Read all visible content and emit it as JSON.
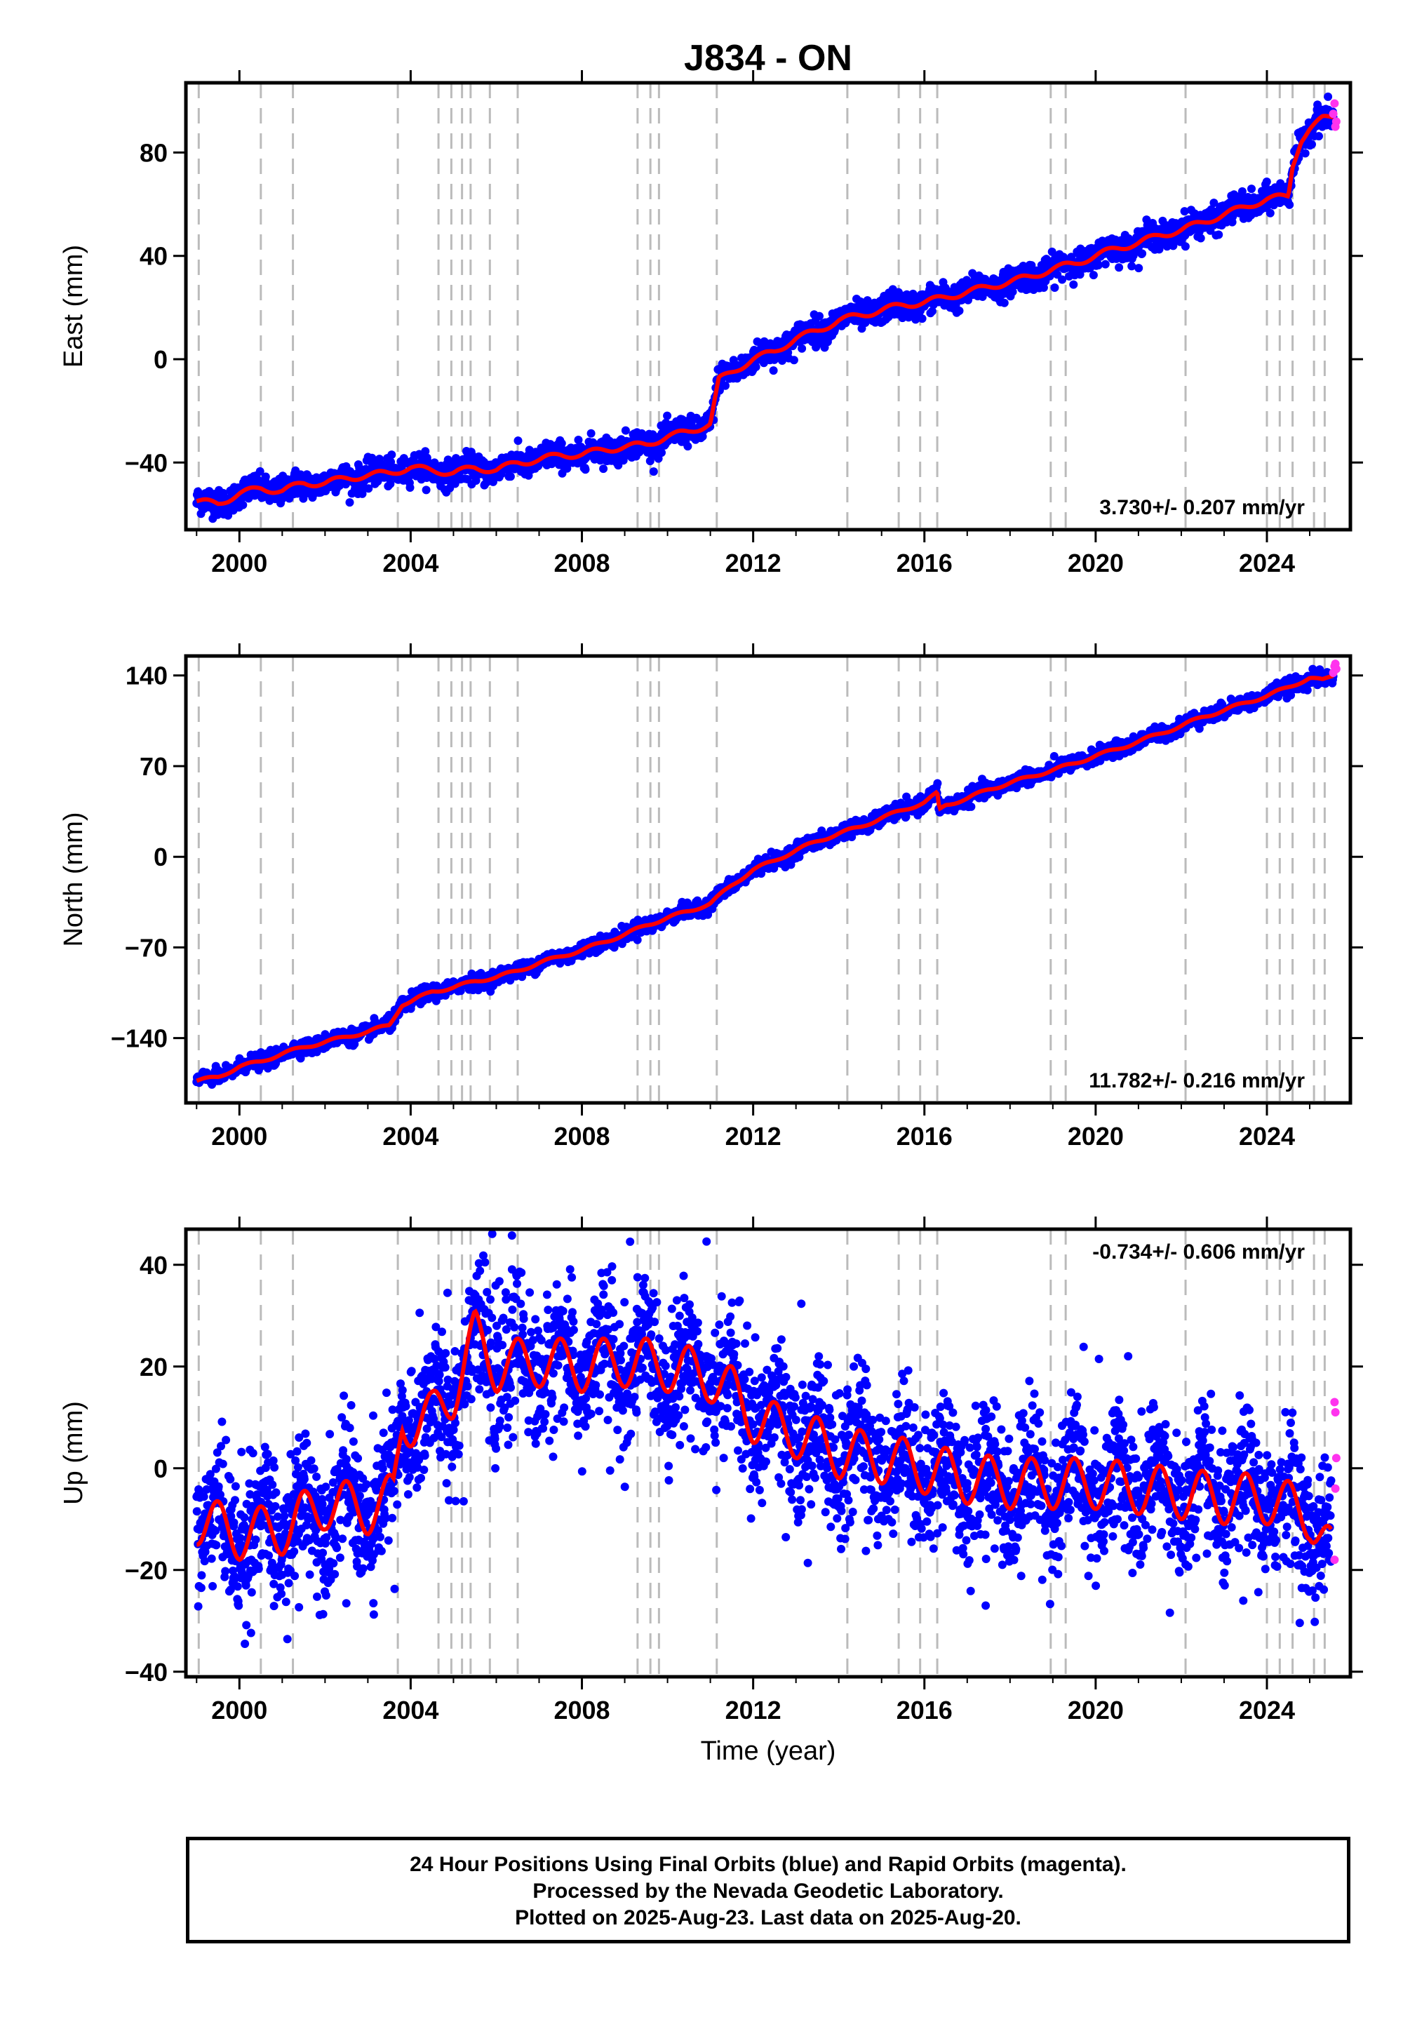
{
  "title": "J834 - ON",
  "footer": {
    "line1": "24 Hour Positions Using Final Orbits (blue) and Rapid Orbits (magenta).",
    "line2": "Processed by the Nevada Geodetic Laboratory.",
    "line3": "Plotted on 2025-Aug-23. Last data on 2025-Aug-20."
  },
  "colors": {
    "final_orbits": "#0000ff",
    "rapid_orbits": "#ff33ee",
    "model": "#ff0000",
    "event_lines": "#bbbbbb"
  },
  "chart_data": [
    {
      "type": "scatter",
      "component": "East",
      "ylabel": "East (mm)",
      "xlabel": "",
      "xlim": [
        1998.75,
        2025.95
      ],
      "ylim": [
        -66,
        107
      ],
      "xticks": [
        2000,
        2004,
        2008,
        2012,
        2016,
        2020,
        2024
      ],
      "yticks": [
        -40,
        0,
        40,
        80
      ],
      "rate_label": "3.730+/- 0.207 mm/yr",
      "series": [
        {
          "name": "Final Orbits",
          "color": "#0000ff",
          "x": [
            1999.0,
            1999.5,
            2000.0,
            2000.5,
            2001.0,
            2001.5,
            2002.0,
            2002.5,
            2003.0,
            2003.5,
            2004.0,
            2004.5,
            2005.0,
            2005.5,
            2006.0,
            2006.5,
            2007.0,
            2007.5,
            2008.0,
            2008.5,
            2009.0,
            2009.5,
            2010.0,
            2010.5,
            2011.0,
            2011.2,
            2011.5,
            2012.0,
            2012.5,
            2013.0,
            2013.5,
            2014.0,
            2014.5,
            2015.0,
            2015.5,
            2016.0,
            2016.5,
            2017.0,
            2017.5,
            2018.0,
            2018.5,
            2019.0,
            2019.5,
            2020.0,
            2020.5,
            2021.0,
            2021.5,
            2022.0,
            2022.5,
            2023.0,
            2023.5,
            2024.0,
            2024.5,
            2024.6,
            2024.8,
            2025.0,
            2025.3,
            2025.55
          ],
          "y": [
            -55,
            -56,
            -52,
            -50,
            -51,
            -48,
            -48,
            -46,
            -45,
            -44,
            -42,
            -43,
            -44,
            -42,
            -43,
            -40,
            -39,
            -37,
            -37,
            -35,
            -34,
            -33,
            -30,
            -28,
            -25,
            -8,
            -5,
            0,
            3,
            8,
            11,
            15,
            17,
            19,
            21,
            22,
            24,
            26,
            28,
            30,
            32,
            35,
            37,
            40,
            43,
            45,
            48,
            50,
            53,
            56,
            59,
            62,
            63,
            75,
            85,
            89,
            93,
            94
          ]
        },
        {
          "name": "Rapid Orbits",
          "color": "#ff33ee",
          "x": [
            2025.55,
            2025.58,
            2025.6,
            2025.62
          ],
          "y": [
            95,
            99,
            90,
            92
          ]
        },
        {
          "name": "Model",
          "color": "#ff0000",
          "x": [
            1999.0,
            1999.5,
            2000.0,
            2000.5,
            2001.0,
            2001.5,
            2002.0,
            2002.5,
            2003.0,
            2003.5,
            2004.0,
            2004.5,
            2005.0,
            2005.5,
            2006.0,
            2006.5,
            2007.0,
            2007.5,
            2008.0,
            2008.5,
            2009.0,
            2009.5,
            2010.0,
            2010.5,
            2011.0,
            2011.2,
            2011.5,
            2012.0,
            2012.5,
            2013.0,
            2013.5,
            2014.0,
            2014.5,
            2015.0,
            2015.5,
            2016.0,
            2016.5,
            2017.0,
            2017.5,
            2018.0,
            2018.5,
            2019.0,
            2019.5,
            2020.0,
            2020.5,
            2021.0,
            2021.5,
            2022.0,
            2022.5,
            2023.0,
            2023.5,
            2024.0,
            2024.5,
            2024.6,
            2024.8,
            2025.0,
            2025.3,
            2025.55
          ],
          "y": [
            -55,
            -56,
            -52,
            -50,
            -51,
            -48,
            -48,
            -46,
            -45,
            -44,
            -42,
            -43,
            -44,
            -42,
            -43,
            -40,
            -39,
            -37,
            -37,
            -35,
            -34,
            -33,
            -30,
            -28,
            -25,
            -8,
            -5,
            0,
            3,
            8,
            11,
            15,
            17,
            19,
            21,
            22,
            24,
            26,
            28,
            30,
            32,
            35,
            37,
            40,
            43,
            45,
            48,
            50,
            53,
            56,
            59,
            62,
            63,
            75,
            85,
            89,
            93,
            94
          ]
        }
      ]
    },
    {
      "type": "scatter",
      "component": "North",
      "ylabel": "North (mm)",
      "xlabel": "",
      "xlim": [
        1998.75,
        2025.95
      ],
      "ylim": [
        -190,
        155
      ],
      "xticks": [
        2000,
        2004,
        2008,
        2012,
        2016,
        2020,
        2024
      ],
      "yticks": [
        -140,
        -70,
        0,
        70,
        140
      ],
      "rate_label": "11.782+/- 0.216 mm/yr",
      "series": [
        {
          "name": "Final Orbits",
          "color": "#0000ff",
          "x": [
            1999.0,
            1999.5,
            2000.0,
            2000.5,
            2001.0,
            2001.5,
            2002.0,
            2002.5,
            2003.0,
            2003.5,
            2003.8,
            2004.0,
            2004.5,
            2005.0,
            2005.5,
            2006.0,
            2006.5,
            2007.0,
            2007.5,
            2008.0,
            2008.5,
            2009.0,
            2009.5,
            2010.0,
            2010.5,
            2011.0,
            2011.5,
            2012.0,
            2012.5,
            2013.0,
            2013.5,
            2014.0,
            2014.5,
            2015.0,
            2015.5,
            2016.0,
            2016.3,
            2016.35,
            2016.5,
            2017.0,
            2017.5,
            2018.0,
            2018.5,
            2019.0,
            2019.5,
            2020.0,
            2020.5,
            2021.0,
            2021.5,
            2022.0,
            2022.5,
            2023.0,
            2023.5,
            2024.0,
            2024.5,
            2025.0,
            2025.3,
            2025.55
          ],
          "y": [
            -173,
            -170,
            -162,
            -158,
            -152,
            -147,
            -143,
            -139,
            -135,
            -130,
            -114,
            -112,
            -104,
            -101,
            -96,
            -93,
            -88,
            -82,
            -77,
            -72,
            -66,
            -60,
            -53,
            -47,
            -42,
            -36,
            -22,
            -10,
            -3,
            5,
            12,
            18,
            23,
            30,
            36,
            42,
            49,
            36,
            40,
            45,
            52,
            57,
            62,
            67,
            72,
            78,
            83,
            89,
            95,
            101,
            108,
            113,
            119,
            124,
            131,
            138,
            136,
            140
          ]
        },
        {
          "name": "Rapid Orbits",
          "color": "#ff33ee",
          "x": [
            2025.55,
            2025.58,
            2025.6,
            2025.62
          ],
          "y": [
            142,
            147,
            149,
            145
          ]
        },
        {
          "name": "Model",
          "color": "#ff0000",
          "x": [
            1999.0,
            1999.5,
            2000.0,
            2000.5,
            2001.0,
            2001.5,
            2002.0,
            2002.5,
            2003.0,
            2003.5,
            2003.8,
            2004.0,
            2004.5,
            2005.0,
            2005.5,
            2006.0,
            2006.5,
            2007.0,
            2007.5,
            2008.0,
            2008.5,
            2009.0,
            2009.5,
            2010.0,
            2010.5,
            2011.0,
            2011.5,
            2012.0,
            2012.5,
            2013.0,
            2013.5,
            2014.0,
            2014.5,
            2015.0,
            2015.5,
            2016.0,
            2016.3,
            2016.35,
            2016.5,
            2017.0,
            2017.5,
            2018.0,
            2018.5,
            2019.0,
            2019.5,
            2020.0,
            2020.5,
            2021.0,
            2021.5,
            2022.0,
            2022.5,
            2023.0,
            2023.5,
            2024.0,
            2024.5,
            2025.0,
            2025.3,
            2025.55
          ],
          "y": [
            -173,
            -170,
            -162,
            -158,
            -152,
            -147,
            -143,
            -139,
            -135,
            -130,
            -114,
            -112,
            -104,
            -101,
            -96,
            -93,
            -88,
            -82,
            -77,
            -72,
            -66,
            -60,
            -53,
            -47,
            -42,
            -36,
            -22,
            -10,
            -3,
            5,
            12,
            18,
            23,
            30,
            36,
            42,
            49,
            36,
            40,
            45,
            52,
            57,
            62,
            67,
            72,
            78,
            83,
            89,
            95,
            101,
            108,
            113,
            119,
            124,
            131,
            138,
            136,
            140
          ]
        }
      ]
    },
    {
      "type": "scatter",
      "component": "Up",
      "ylabel": "Up (mm)",
      "xlabel": "Time (year)",
      "xlim": [
        1998.75,
        2025.95
      ],
      "ylim": [
        -41,
        47
      ],
      "xticks": [
        2000,
        2004,
        2008,
        2012,
        2016,
        2020,
        2024
      ],
      "yticks": [
        -40,
        -20,
        0,
        20,
        40
      ],
      "rate_label": "-0.734+/- 0.606 mm/yr",
      "series": [
        {
          "name": "Final Orbits",
          "color": "#0000ff",
          "x": [
            1999.0,
            2000.0,
            2001.0,
            2002.0,
            2003.0,
            2003.6,
            2003.8,
            2004.5,
            2005.0,
            2005.5,
            2006.0,
            2007.0,
            2008.0,
            2009.0,
            2010.0,
            2011.0,
            2011.5,
            2012.0,
            2012.5,
            2013.0,
            2014.0,
            2015.0,
            2016.0,
            2017.0,
            2018.0,
            2019.0,
            2020.0,
            2021.0,
            2022.0,
            2023.0,
            2024.0,
            2025.0,
            2025.5
          ],
          "y": [
            -10,
            -13,
            -12,
            -7,
            -8,
            -6,
            9,
            10,
            15,
            26,
            20,
            21,
            20,
            21,
            20,
            18,
            15,
            10,
            8,
            7,
            3,
            2,
            0,
            -2,
            -3,
            -3,
            -3,
            -4,
            -5,
            -6,
            -6,
            -9,
            -17
          ]
        },
        {
          "name": "Rapid Orbits",
          "color": "#ff33ee",
          "x": [
            2025.58,
            2025.6,
            2025.62,
            2025.6,
            2025.58
          ],
          "y": [
            13,
            11,
            2,
            -4,
            -18
          ]
        },
        {
          "name": "Model",
          "color": "#ff0000",
          "x": [
            1999.0,
            2000.0,
            2001.0,
            2002.0,
            2003.0,
            2003.6,
            2003.8,
            2004.5,
            2005.0,
            2005.5,
            2006.0,
            2007.0,
            2008.0,
            2009.0,
            2010.0,
            2011.0,
            2011.5,
            2012.0,
            2012.5,
            2013.0,
            2014.0,
            2015.0,
            2016.0,
            2017.0,
            2018.0,
            2019.0,
            2020.0,
            2021.0,
            2022.0,
            2023.0,
            2024.0,
            2025.0,
            2025.5
          ],
          "y": [
            -10,
            -13,
            -12,
            -7,
            -8,
            -6,
            9,
            10,
            15,
            26,
            20,
            21,
            20,
            21,
            20,
            18,
            15,
            10,
            8,
            7,
            3,
            2,
            0,
            -2,
            -3,
            -3,
            -3,
            -4,
            -5,
            -6,
            -6,
            -9,
            -17
          ]
        }
      ]
    }
  ],
  "event_lines": [
    1999.05,
    2000.5,
    2001.25,
    2003.7,
    2004.65,
    2004.95,
    2005.2,
    2005.4,
    2005.85,
    2006.5,
    2009.3,
    2009.6,
    2009.8,
    2011.15,
    2014.2,
    2015.4,
    2015.9,
    2016.3,
    2018.95,
    2019.3,
    2022.1,
    2024.0,
    2024.3,
    2024.6,
    2025.1,
    2025.35
  ]
}
